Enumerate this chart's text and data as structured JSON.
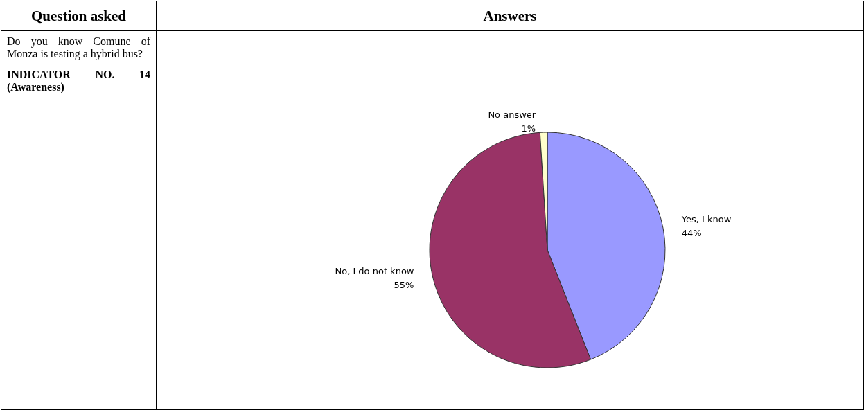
{
  "chart_data": {
    "type": "pie",
    "annotations": [
      "Question asked",
      "Answers",
      "Do you know Comune of Monza is testing a hybrid bus?",
      "INDICATOR NO. 14 (Awareness)"
    ],
    "categories": [
      "Yes, I know",
      "No, I do not know",
      "No answer"
    ],
    "values": [
      44,
      55,
      1
    ],
    "value_labels": [
      "44%",
      "55%",
      "1%"
    ],
    "colors": [
      "#9999ff",
      "#993366",
      "#ffffcc"
    ],
    "legend": false
  }
}
